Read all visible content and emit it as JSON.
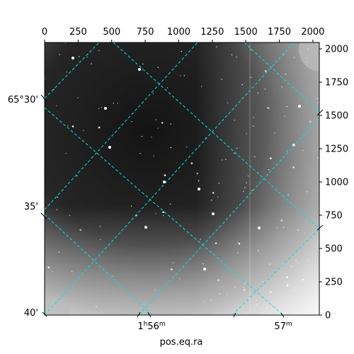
{
  "figure": {
    "xlabel": "pos.eq.ra",
    "ylabel": "",
    "grid_color": "#00e5e5",
    "pixel_x_ticks": [
      "0",
      "250",
      "500",
      "750",
      "1000",
      "1250",
      "1500",
      "1750",
      "2000"
    ],
    "pixel_y_ticks": [
      "0",
      "250",
      "500",
      "750",
      "1000",
      "1250",
      "1500",
      "1750",
      "2000"
    ],
    "pixel_range": {
      "x": [
        0,
        2048
      ],
      "y": [
        0,
        2048
      ]
    },
    "dec_ticks": [
      "65°30'",
      "35'",
      "40'"
    ],
    "ra_ticks": [
      {
        "h": "1",
        "hsup": "h",
        "m": "56",
        "msup": "m"
      },
      {
        "h": "",
        "hsup": "",
        "m": "57",
        "msup": "m"
      }
    ]
  }
}
